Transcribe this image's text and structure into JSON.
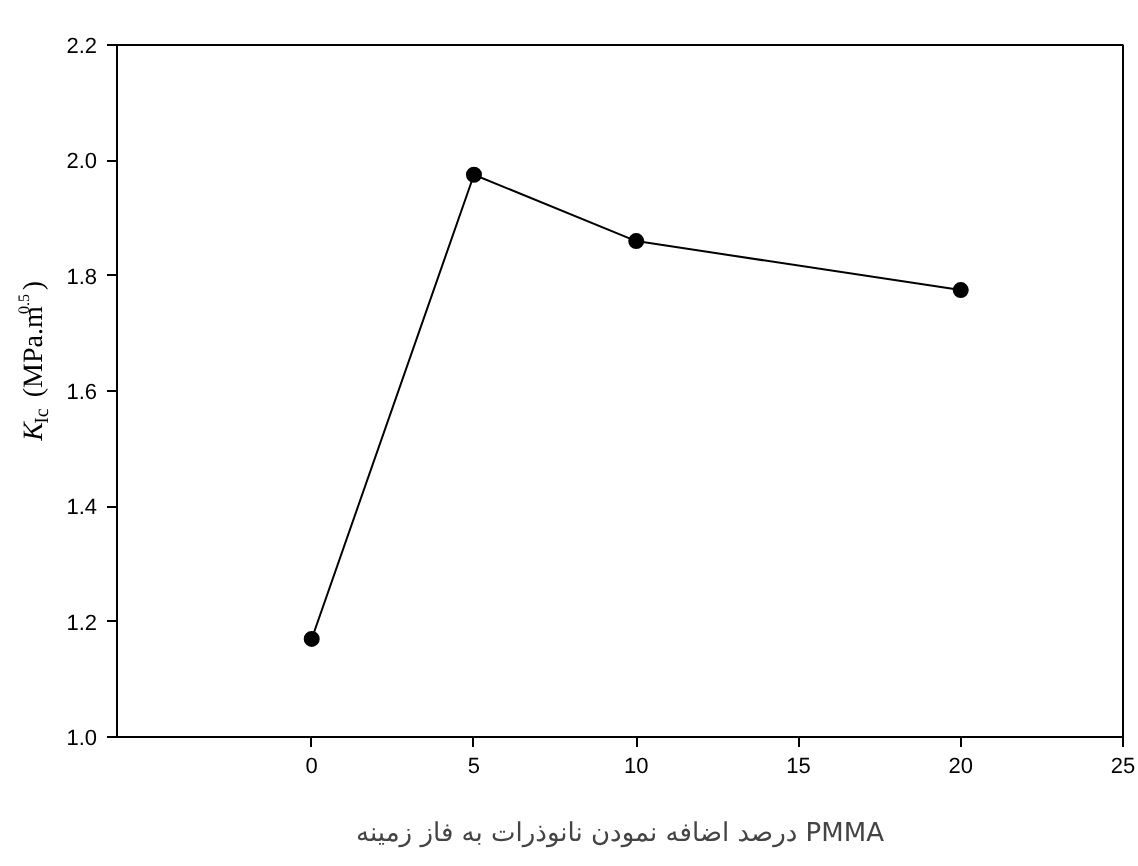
{
  "chart_data": {
    "type": "line",
    "xlabel": "درصد اضافه نمودن نانوذرات به فاز زمینه PMMA",
    "ylabel": "K$_{Ic}$ (MPa.m$^{0.5}$)",
    "x": [
      0,
      5,
      10,
      20
    ],
    "series": [
      {
        "color": "#000000",
        "values": [
          1.17,
          1.975,
          1.86,
          1.775
        ]
      }
    ],
    "xlim": [
      -6,
      25
    ],
    "xticks": [
      0,
      5,
      10,
      15,
      20,
      25
    ],
    "ylim": [
      1.0,
      2.2
    ],
    "yticks": [
      {
        "value": 1.0,
        "label": "1.0"
      },
      {
        "value": 1.2,
        "label": "1.2"
      },
      {
        "value": 1.4,
        "label": "1.4"
      },
      {
        "value": 1.6,
        "label": "1.6"
      },
      {
        "value": 1.8,
        "label": "1.8"
      },
      {
        "value": 2.0,
        "label": "2.0"
      },
      {
        "value": 2.2,
        "label": "2.2"
      }
    ],
    "grid": false,
    "legend": false,
    "marker": "circle",
    "line_style": "solid"
  }
}
